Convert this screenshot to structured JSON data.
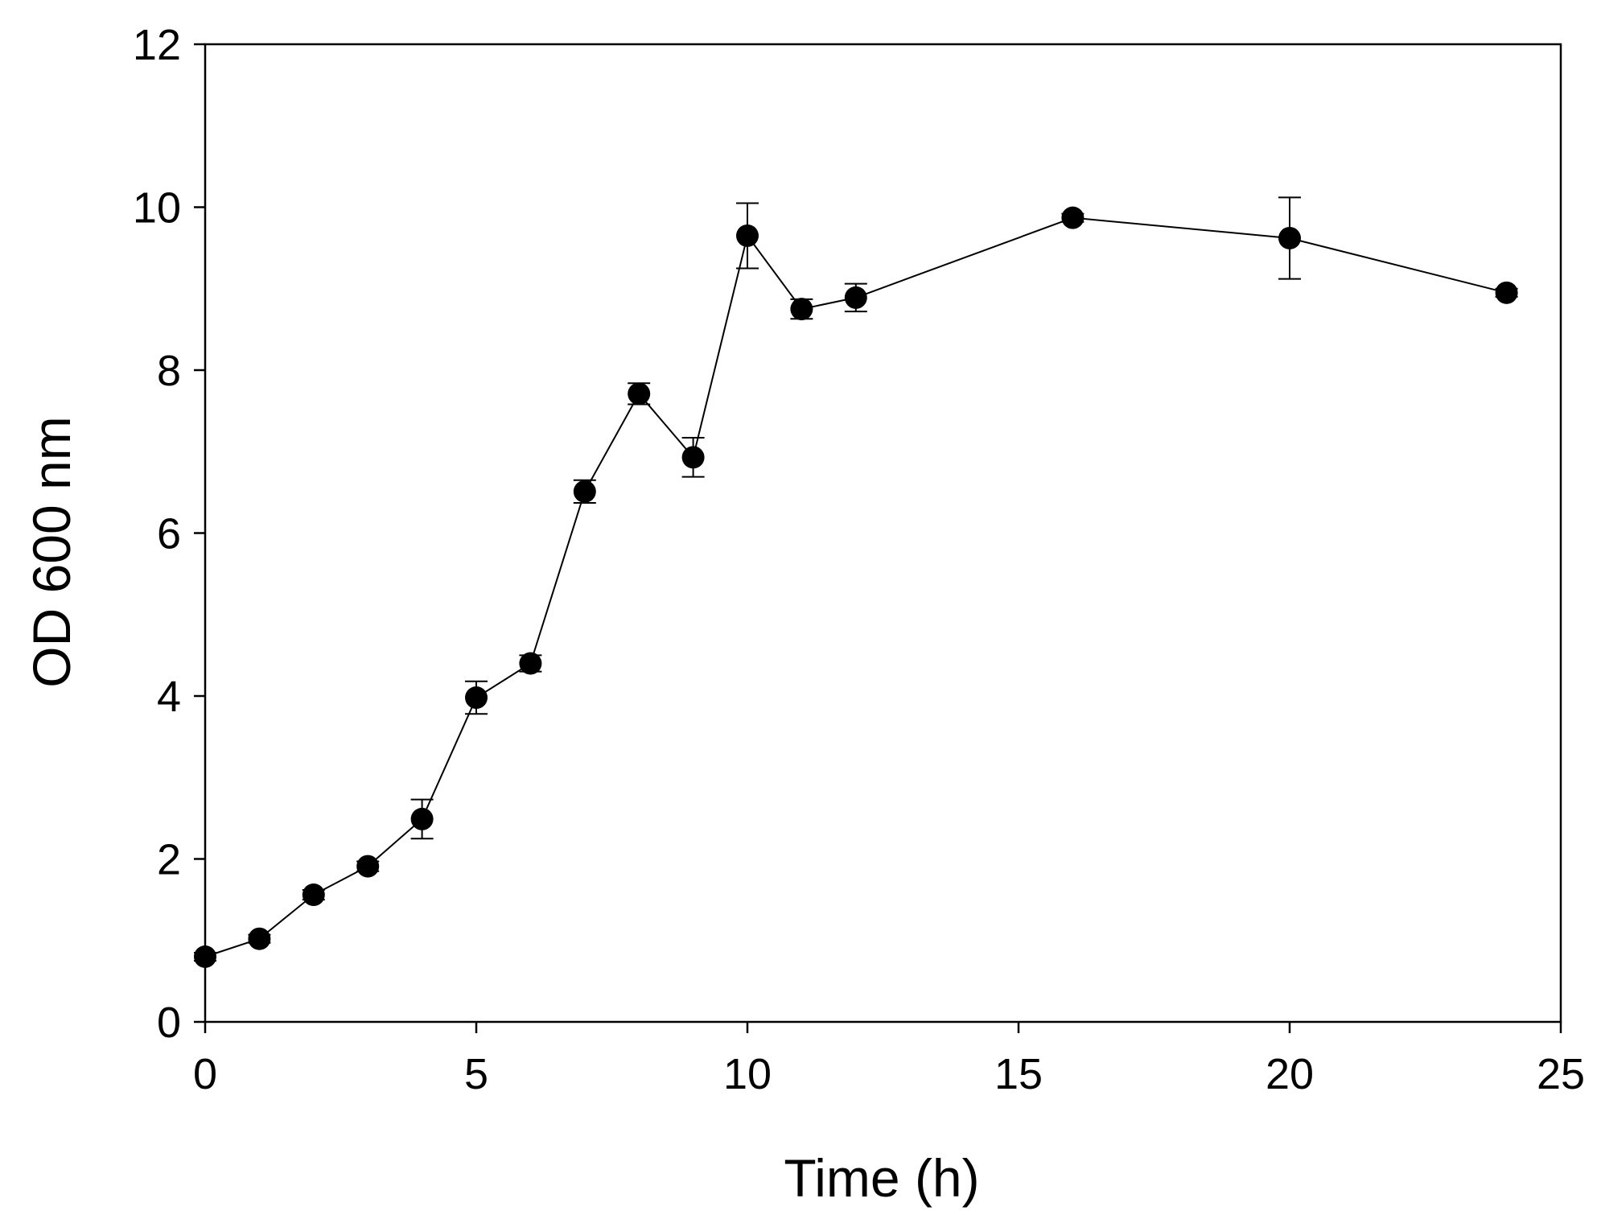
{
  "chart_data": {
    "type": "line",
    "title": "",
    "xlabel": "Time (h)",
    "ylabel": "OD 600 nm",
    "xlim": [
      0,
      25
    ],
    "ylim": [
      0,
      12
    ],
    "xticks": [
      0,
      5,
      10,
      15,
      20,
      25
    ],
    "yticks": [
      0,
      2,
      4,
      6,
      8,
      10,
      12
    ],
    "grid": false,
    "legend": "none",
    "series": [
      {
        "name": "OD 600 nm",
        "marker": "filled-circle",
        "color": "#000000",
        "x": [
          0,
          1,
          2,
          3,
          4,
          5,
          6,
          7,
          8,
          9,
          10,
          11,
          12,
          16,
          20,
          24
        ],
        "y": [
          0.8,
          1.02,
          1.56,
          1.91,
          2.49,
          3.98,
          4.4,
          6.51,
          7.71,
          6.93,
          9.65,
          8.75,
          8.89,
          9.87,
          9.62,
          8.95
        ],
        "error": [
          0.05,
          0.05,
          0.06,
          0.06,
          0.24,
          0.2,
          0.1,
          0.14,
          0.13,
          0.24,
          0.4,
          0.12,
          0.17,
          0.05,
          0.5,
          0.05
        ]
      }
    ]
  }
}
